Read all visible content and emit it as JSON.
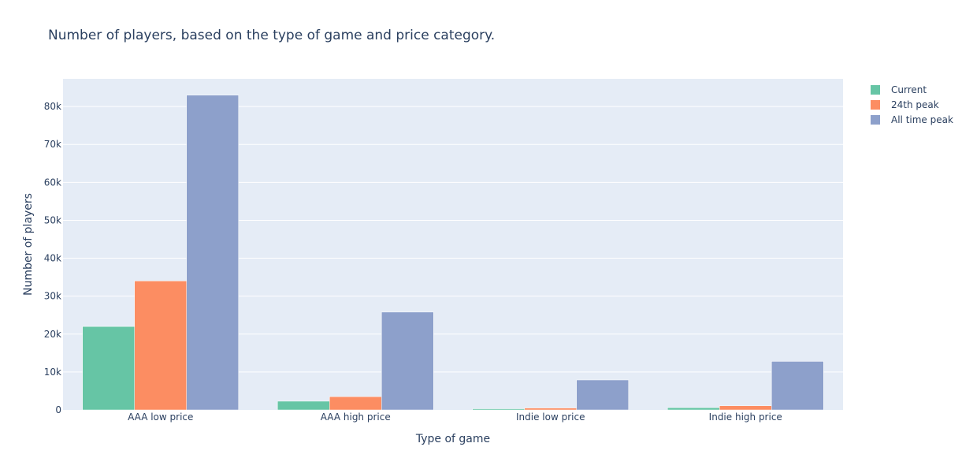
{
  "chart_data": {
    "type": "bar",
    "title": "Number of players, based on the type of game and price category.",
    "xlabel": "Type of game",
    "ylabel": "Number of players",
    "categories": [
      "AAA low price",
      "AAA high price",
      "Indie low price",
      "Indie high price"
    ],
    "series": [
      {
        "name": "Current",
        "color": "#66c5a5",
        "values": [
          22000,
          2300,
          300,
          600
        ]
      },
      {
        "name": "24th peak",
        "color": "#fc8d62",
        "values": [
          34000,
          3500,
          500,
          1100
        ]
      },
      {
        "name": "All time peak",
        "color": "#8da0cb",
        "values": [
          83000,
          25800,
          7900,
          12800
        ]
      }
    ],
    "yticks": [
      0,
      10000,
      20000,
      30000,
      40000,
      50000,
      60000,
      70000,
      80000
    ],
    "ytick_labels": [
      "0",
      "10k",
      "20k",
      "30k",
      "40k",
      "50k",
      "60k",
      "70k",
      "80k"
    ],
    "ylim": [
      0,
      87300
    ],
    "grid": true,
    "legend_position": "top-right",
    "plot_background": "#e5ecf6"
  }
}
